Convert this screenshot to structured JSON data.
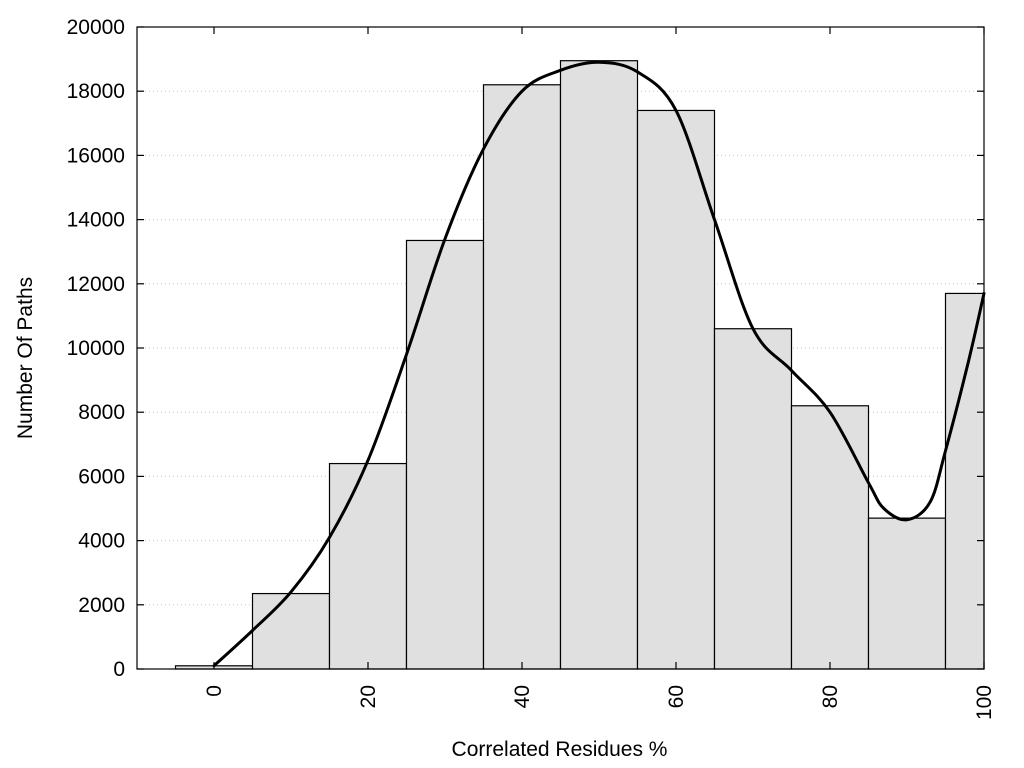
{
  "chart_data": {
    "type": "bar",
    "title": "",
    "xlabel": "Correlated Residues %",
    "ylabel": "Number Of Paths",
    "xlim": [
      -10,
      100
    ],
    "ylim": [
      0,
      20000
    ],
    "grid": true,
    "x_ticks": [
      0,
      20,
      40,
      60,
      80,
      100
    ],
    "y_ticks": [
      0,
      2000,
      4000,
      6000,
      8000,
      10000,
      12000,
      14000,
      16000,
      18000,
      20000
    ],
    "bin_edges": [
      -5,
      5,
      15,
      25,
      35,
      45,
      55,
      65,
      75,
      85,
      95,
      100
    ],
    "values": [
      100,
      2350,
      6400,
      13350,
      18200,
      18950,
      17400,
      10600,
      8200,
      4700,
      11700
    ],
    "smooth_curve": {
      "x": [
        0,
        5,
        10,
        15,
        20,
        25,
        30,
        35,
        40,
        45,
        50,
        55,
        60,
        65,
        70,
        75,
        80,
        85,
        87,
        90,
        93,
        95,
        98,
        100
      ],
      "y": [
        100,
        1200,
        2400,
        4100,
        6500,
        9800,
        13400,
        16200,
        18000,
        18650,
        18900,
        18600,
        17400,
        14000,
        10600,
        9300,
        8000,
        5800,
        5000,
        4650,
        5200,
        6800,
        9600,
        11700
      ]
    }
  }
}
